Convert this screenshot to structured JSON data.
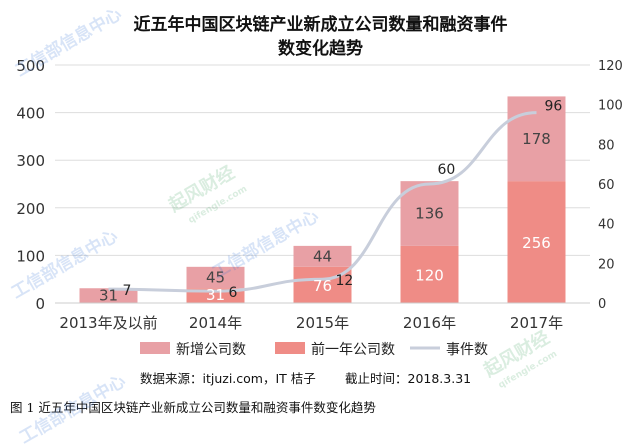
{
  "title_line1": "近五年中国区块链产业新成立公司数量和融资事件",
  "title_line2": "数变化趋势",
  "source": "数据来源：itjuzi.com，IT 桔子",
  "cutoff": "截止时间：2018.3.31",
  "caption": "图 1   近五年中国区块链产业新成立公司数量和融资事件数变化趋势",
  "watermarks": {
    "miit": "工信部信息中心",
    "brand": "起风财经",
    "brand_domain": "qifengle.com"
  },
  "colors": {
    "new_companies": "#e8a0a5",
    "prev_year": "#ef8c86",
    "events_line": "#c8cedb",
    "text": "#333333"
  },
  "chart_data": {
    "type": "bar",
    "categories": [
      "2013年及以前",
      "2014年",
      "2015年",
      "2016年",
      "2017年"
    ],
    "series": [
      {
        "name": "前一年公司数",
        "kind": "bar-stack",
        "values": [
          0,
          31,
          76,
          120,
          256
        ]
      },
      {
        "name": "新增公司数",
        "kind": "bar-stack",
        "values": [
          31,
          45,
          44,
          136,
          178
        ]
      },
      {
        "name": "事件数",
        "kind": "line",
        "axis": "right",
        "values": [
          7,
          6,
          12,
          60,
          96
        ]
      }
    ],
    "ylim_left": [
      0,
      500
    ],
    "yticks_left": [
      0,
      100,
      200,
      300,
      400,
      500
    ],
    "ylim_right": [
      0,
      120
    ],
    "yticks_right": [
      0,
      20,
      40,
      60,
      80,
      100,
      120
    ],
    "grid": true,
    "legend": "bottom"
  }
}
